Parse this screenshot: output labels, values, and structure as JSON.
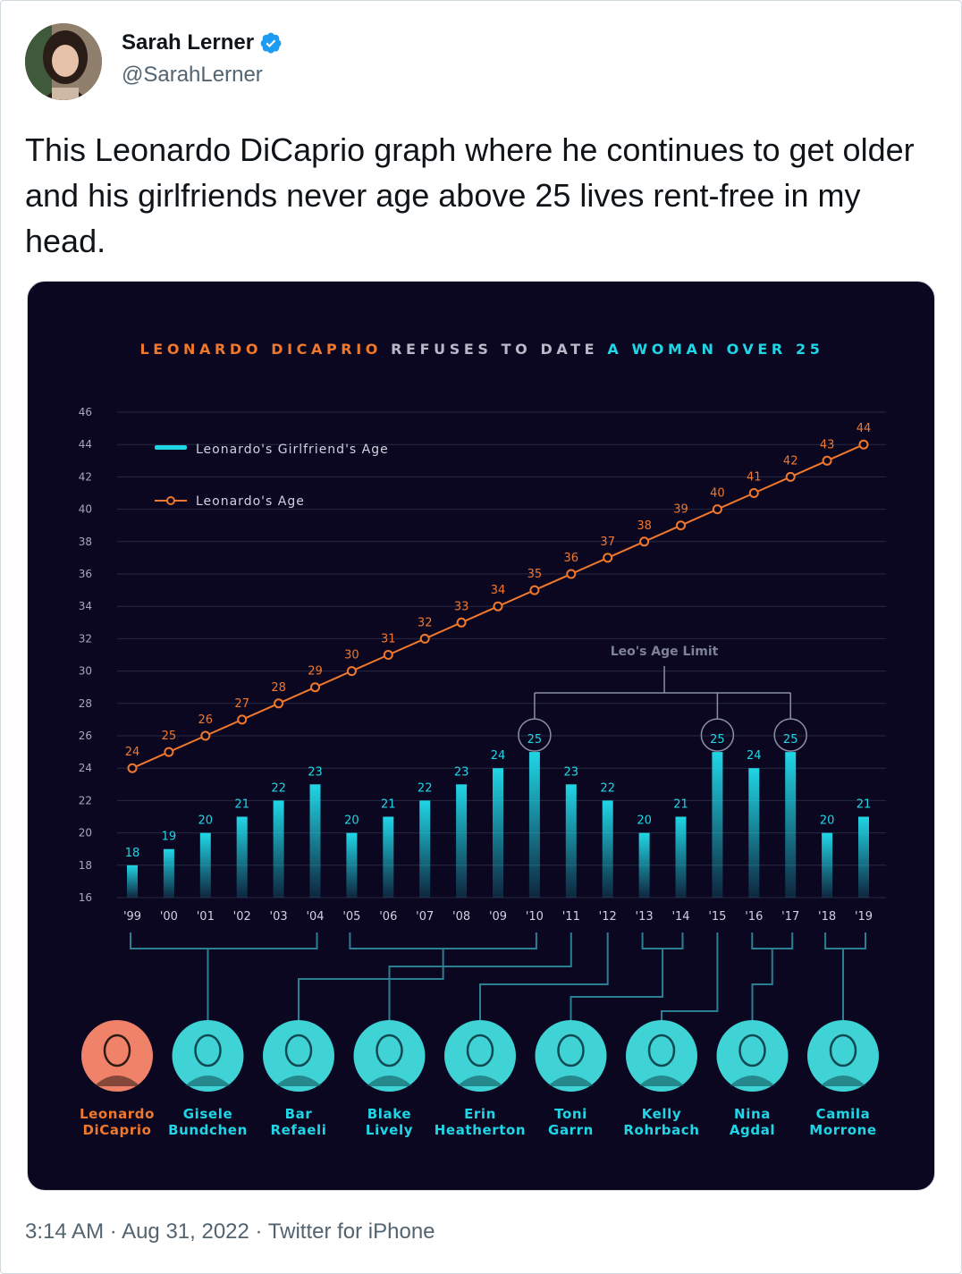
{
  "tweet": {
    "author_name": "Sarah Lerner",
    "author_handle": "@SarahLerner",
    "text": "This Leonardo DiCaprio graph where he continues to get older and his girlfriends never age above 25 lives rent-free in my head.",
    "time": "3:14 AM",
    "date": "Aug 31, 2022",
    "source": "Twitter for iPhone",
    "separator": " · ",
    "avatar_icon": "user-avatar-photo",
    "verified_icon": "verified-badge-icon",
    "colors": {
      "verified": "#1d9bf0",
      "text": "#0f1419",
      "muted": "#536471"
    }
  },
  "chart_data": {
    "type": "bar",
    "title_parts": [
      {
        "text": "LEONARDO DICAPRIO",
        "color": "#f0782d"
      },
      {
        "text": " REFUSES TO DATE ",
        "color": "#b8b8c8"
      },
      {
        "text": "A WOMAN OVER 25",
        "color": "#20d6e6"
      }
    ],
    "categories": [
      "'99",
      "'00",
      "'01",
      "'02",
      "'03",
      "'04",
      "'05",
      "'06",
      "'07",
      "'08",
      "'09",
      "'10",
      "'11",
      "'12",
      "'13",
      "'14",
      "'15",
      "'16",
      "'17",
      "'18",
      "'19"
    ],
    "series": [
      {
        "name": "Leonardo's Girlfriend's Age",
        "type": "bar",
        "color": "#20d6e6",
        "values": [
          18,
          19,
          20,
          21,
          22,
          23,
          20,
          21,
          22,
          23,
          24,
          25,
          23,
          22,
          20,
          21,
          25,
          24,
          25,
          20,
          21
        ]
      },
      {
        "name": "Leonardo's Age",
        "type": "line",
        "color": "#f0782d",
        "values": [
          24,
          25,
          26,
          27,
          28,
          29,
          30,
          31,
          32,
          33,
          34,
          35,
          36,
          37,
          38,
          39,
          40,
          41,
          42,
          43,
          44
        ]
      }
    ],
    "yticks": [
      16,
      18,
      20,
      22,
      24,
      26,
      28,
      30,
      32,
      34,
      36,
      38,
      40,
      42,
      44,
      46
    ],
    "ylim": [
      16,
      46
    ],
    "grid": true,
    "legend_position": "top-left",
    "annotation": {
      "text": "Leo's Age Limit",
      "highlighted_categories": [
        "'10",
        "'15",
        "'17"
      ]
    },
    "people": [
      {
        "first": "Leonardo",
        "last": "DiCaprio",
        "color": "#f0782d",
        "years": []
      },
      {
        "first": "Gisele",
        "last": "Bundchen",
        "color": "#20d6e6",
        "years": [
          "'99",
          "'04"
        ]
      },
      {
        "first": "Bar",
        "last": "Refaeli",
        "color": "#20d6e6",
        "years": [
          "'05",
          "'10"
        ]
      },
      {
        "first": "Blake",
        "last": "Lively",
        "color": "#20d6e6",
        "years": [
          "'11"
        ]
      },
      {
        "first": "Erin",
        "last": "Heatherton",
        "color": "#20d6e6",
        "years": [
          "'12"
        ]
      },
      {
        "first": "Toni",
        "last": "Garrn",
        "color": "#20d6e6",
        "years": [
          "'13",
          "'14"
        ]
      },
      {
        "first": "Kelly",
        "last": "Rohrbach",
        "color": "#20d6e6",
        "years": [
          "'15"
        ]
      },
      {
        "first": "Nina",
        "last": "Agdal",
        "color": "#20d6e6",
        "years": [
          "'16",
          "'17"
        ]
      },
      {
        "first": "Camila",
        "last": "Morrone",
        "color": "#20d6e6",
        "years": [
          "'18",
          "'19"
        ]
      }
    ]
  }
}
